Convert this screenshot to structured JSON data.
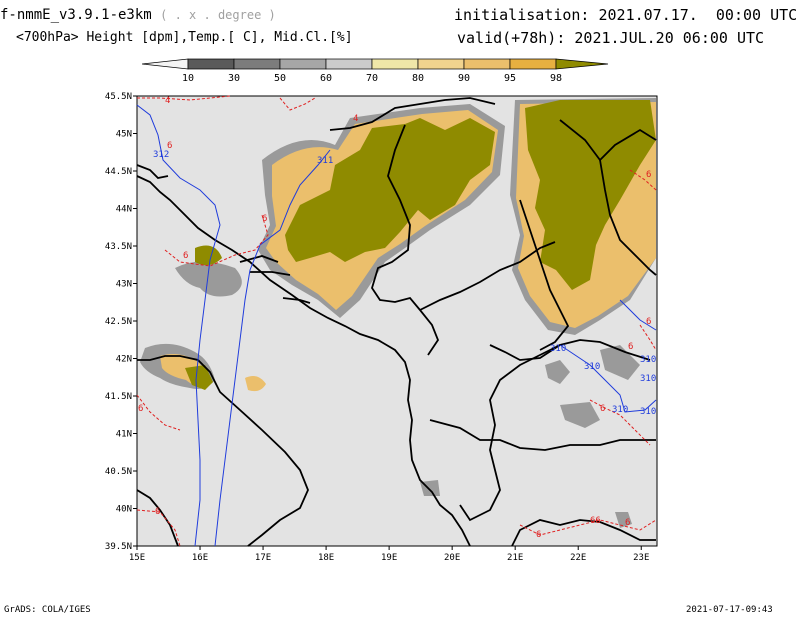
{
  "header": {
    "model": "f-nmmE_v3.9.1-e3km",
    "degree_note": "( . x . degree )",
    "fields": "<700hPa> Height [dpm],Temp.[ C], Mid.Cl.[%]",
    "initialisation": "initialisation: 2021.07.17.  00:00 UTC",
    "valid": "valid(+78h): 2021.JUL.20 06:00 UTC"
  },
  "colorbar": {
    "levels": [
      "10",
      "30",
      "50",
      "60",
      "70",
      "80",
      "90",
      "95",
      "98"
    ],
    "colors": [
      "#f4f4f4",
      "#5a5a5a",
      "#7c7c7c",
      "#a6a6a6",
      "#cbcbcb",
      "#efe7a8",
      "#f1d38e",
      "#ebbf6c",
      "#e7b040",
      "#8f8b00"
    ]
  },
  "axes": {
    "lon_labels": [
      "15E",
      "16E",
      "17E",
      "18E",
      "19E",
      "20E",
      "21E",
      "22E",
      "23E"
    ],
    "lat_labels": [
      "45.5N",
      "45N",
      "44.5N",
      "44N",
      "43.5N",
      "43N",
      "42.5N",
      "42N",
      "41.5N",
      "41N",
      "40.5N",
      "40N",
      "39.5N"
    ]
  },
  "contour_labels": {
    "height": [
      "312",
      "311",
      "310",
      "310",
      "310",
      "310",
      "310",
      "310"
    ],
    "temp": [
      "4",
      "4",
      "6",
      "6",
      "6",
      "6",
      "6",
      "6",
      "6",
      "6",
      "6",
      "6",
      "66",
      "6"
    ]
  },
  "footer": {
    "left": "GrADS: COLA/IGES",
    "right": "2021-07-17-09:43"
  }
}
